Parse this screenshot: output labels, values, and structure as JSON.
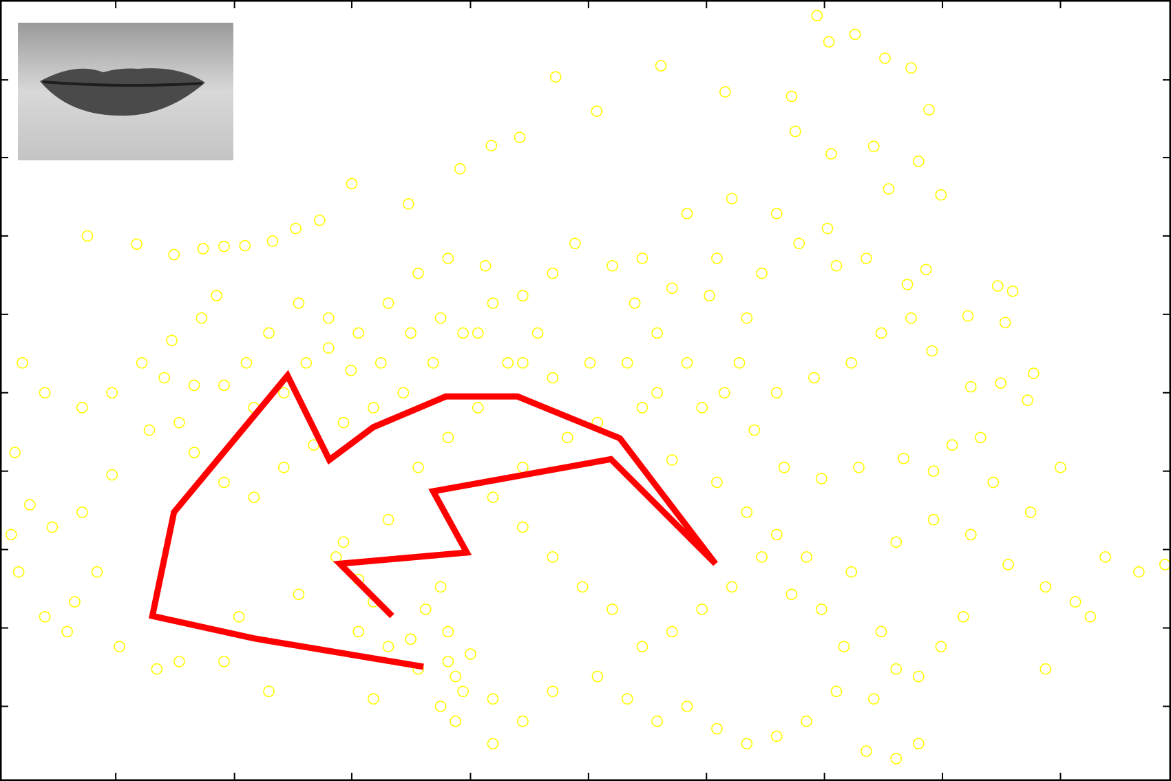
{
  "chart_data": {
    "type": "scatter",
    "xlim": [
      0,
      1568
    ],
    "ylim": [
      0,
      1046
    ],
    "xticks": [
      155,
      314,
      471,
      630,
      788,
      946,
      1104,
      1262,
      1420
    ],
    "yticks": [
      100,
      205,
      310,
      415,
      520,
      625,
      730,
      835,
      939
    ],
    "color": "#ffff00",
    "x": [
      117,
      183,
      233,
      272,
      300,
      328,
      365,
      396,
      428,
      471,
      547,
      616,
      658,
      696,
      744,
      799,
      885,
      971,
      1094,
      1110,
      1145,
      1185,
      1220,
      1244,
      1060,
      1065,
      1113,
      1170,
      1230,
      1190,
      1260,
      1108,
      1120,
      1160,
      1215,
      1240,
      1336,
      1356,
      1296,
      1346,
      1384,
      1376,
      1248,
      1300,
      1340,
      1313,
      1275,
      1250,
      1210,
      1150,
      1100,
      1050,
      1010,
      970,
      920,
      880,
      850,
      820,
      770,
      740,
      700,
      650,
      600,
      560,
      520,
      480,
      440,
      400,
      360,
      330,
      290,
      270,
      230,
      190,
      150,
      110,
      60,
      30,
      20,
      40,
      70,
      110,
      150,
      130,
      100,
      60,
      25,
      15,
      90,
      160,
      210,
      240,
      300,
      360,
      320,
      400,
      450,
      480,
      520,
      560,
      600,
      620,
      660,
      700,
      740,
      800,
      840,
      880,
      920,
      960,
      1000,
      1040,
      1080,
      1120,
      1160,
      1200,
      1230,
      1170,
      1200,
      1130,
      1100,
      1060,
      1020,
      980,
      940,
      900,
      860,
      820,
      780,
      740,
      700,
      660,
      700,
      760,
      800,
      860,
      900,
      960,
      1000,
      1040,
      1080,
      1140,
      1200,
      1250,
      1300,
      1350,
      1400,
      1440,
      1480,
      1525,
      1560,
      1420,
      1380,
      1330,
      1290,
      1260,
      1230,
      1180,
      1400,
      1460,
      600,
      590,
      570,
      630,
      610,
      550,
      500,
      480,
      460,
      520,
      560,
      600,
      640,
      680,
      720,
      660,
      620,
      580,
      540,
      500,
      460,
      420,
      380,
      340,
      300,
      260,
      240,
      200,
      220,
      260,
      300,
      340,
      380,
      410,
      440,
      470,
      510,
      550,
      590,
      640,
      700,
      740,
      790,
      840,
      880,
      940,
      990,
      1040,
      1090,
      1140,
      1180,
      1220,
      1000,
      950,
      900,
      860,
      920,
      980,
      1040,
      1070,
      1020,
      960,
      500,
      660,
      590,
      610
    ],
    "values": [
      730,
      719,
      705,
      713,
      716,
      717,
      723,
      740,
      751,
      800,
      773,
      820,
      851,
      862,
      943,
      897,
      958,
      923,
      1025,
      990,
      1000,
      968,
      955,
      899,
      917,
      870,
      840,
      850,
      830,
      793,
      785,
      740,
      690,
      700,
      665,
      685,
      663,
      656,
      623,
      614,
      546,
      510,
      576,
      528,
      533,
      460,
      450,
      415,
      432,
      420,
      405,
      420,
      470,
      520,
      560,
      600,
      640,
      690,
      720,
      680,
      650,
      690,
      700,
      680,
      640,
      600,
      620,
      640,
      600,
      560,
      650,
      620,
      590,
      560,
      520,
      500,
      520,
      560,
      440,
      370,
      340,
      360,
      410,
      280,
      240,
      220,
      280,
      330,
      200,
      180,
      150,
      160,
      160,
      120,
      220,
      250,
      300,
      200,
      180,
      150,
      160,
      120,
      110,
      80,
      120,
      140,
      110,
      80,
      100,
      70,
      50,
      60,
      80,
      120,
      40,
      30,
      50,
      110,
      150,
      180,
      230,
      250,
      300,
      260,
      230,
      200,
      180,
      230,
      260,
      300,
      340,
      380,
      420,
      460,
      480,
      500,
      430,
      400,
      360,
      330,
      300,
      280,
      320,
      350,
      330,
      290,
      260,
      240,
      300,
      280,
      290,
      420,
      360,
      400,
      220,
      180,
      140,
      200,
      150,
      220,
      200,
      260,
      230,
      170,
      140,
      190,
      240,
      270,
      320,
      350,
      420,
      460,
      500,
      560,
      600,
      640,
      600,
      560,
      520,
      500,
      480,
      450,
      420,
      380,
      400,
      440,
      480,
      470,
      540,
      530,
      530,
      500,
      520,
      560,
      580,
      550,
      560,
      600,
      620,
      600,
      560,
      540,
      560,
      560,
      520,
      500,
      560,
      520,
      540,
      560,
      600,
      620,
      620,
      650,
      660,
      700,
      760,
      780,
      760,
      720,
      680,
      700,
      110,
      50,
      100,
      80
    ],
    "line": {
      "color": "#ff0000",
      "x": [
        525,
        455,
        625,
        580,
        818,
        958,
        830,
        693,
        597,
        500,
        441,
        385,
        233,
        204,
        340,
        567
      ],
      "values": [
        221,
        291,
        306,
        388,
        431,
        291,
        459,
        515,
        515,
        474,
        430,
        543,
        360,
        221,
        191,
        153
      ]
    }
  }
}
